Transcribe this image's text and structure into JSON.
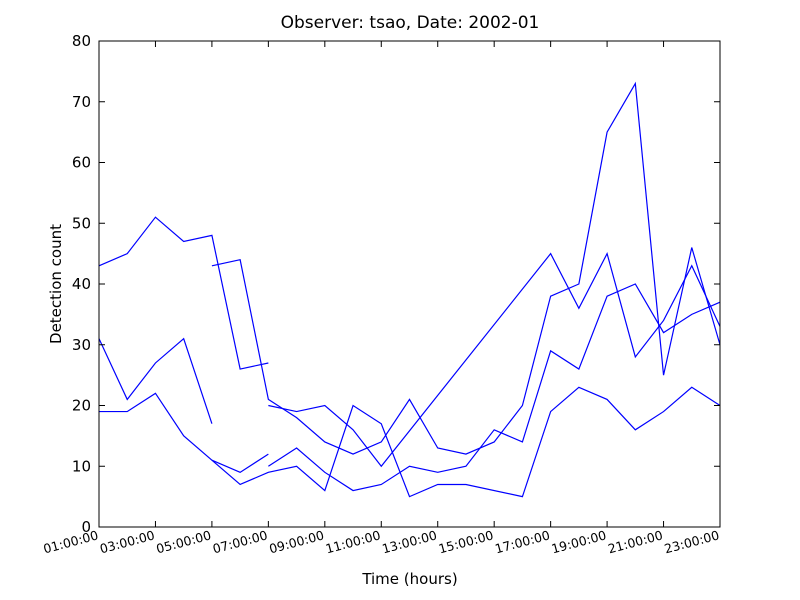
{
  "chart_data": {
    "type": "line",
    "title": "Observer: tsao, Date: 2002-01",
    "x_label": "Time (hours)",
    "y_label": "Detection count",
    "xlim": [
      1,
      23
    ],
    "ylim": [
      0,
      80
    ],
    "xticks": [
      {
        "value": 1,
        "label": "01:00:00"
      },
      {
        "value": 3,
        "label": "03:00:00"
      },
      {
        "value": 5,
        "label": "05:00:00"
      },
      {
        "value": 7,
        "label": "07:00:00"
      },
      {
        "value": 9,
        "label": "09:00:00"
      },
      {
        "value": 11,
        "label": "11:00:00"
      },
      {
        "value": 13,
        "label": "13:00:00"
      },
      {
        "value": 15,
        "label": "15:00:00"
      },
      {
        "value": 17,
        "label": "17:00:00"
      },
      {
        "value": 19,
        "label": "19:00:00"
      },
      {
        "value": 21,
        "label": "21:00:00"
      },
      {
        "value": 23,
        "label": "23:00:00"
      }
    ],
    "yticks": [
      0,
      10,
      20,
      30,
      40,
      50,
      60,
      70,
      80
    ],
    "grid": false,
    "series": [
      {
        "color": "#0000ff",
        "x": [
          1,
          2,
          3,
          4,
          5,
          6,
          7
        ],
        "values": [
          43,
          45,
          51,
          47,
          48,
          26,
          27
        ]
      },
      {
        "color": "#0000ff",
        "x": [
          1,
          2,
          3,
          4,
          5
        ],
        "values": [
          31,
          21,
          27,
          31,
          17
        ]
      },
      {
        "color": "#0000ff",
        "x": [
          1,
          2,
          3,
          4,
          5,
          6,
          7,
          8,
          9,
          10,
          11,
          12,
          13,
          14,
          16,
          17,
          18,
          19,
          20,
          21,
          22,
          23
        ],
        "values": [
          19,
          19,
          22,
          15,
          11,
          7,
          9,
          10,
          6,
          20,
          17,
          5,
          7,
          7,
          5,
          19,
          23,
          21,
          16,
          19,
          23,
          20
        ]
      },
      {
        "color": "#0000ff",
        "x": [
          5,
          6,
          7
        ],
        "values": [
          11,
          9,
          12
        ]
      },
      {
        "color": "#0000ff",
        "x": [
          5,
          6,
          7,
          8,
          9,
          10,
          11,
          12,
          13,
          14,
          15,
          16,
          17,
          18,
          19,
          20,
          21,
          22,
          23
        ],
        "values": [
          43,
          44,
          21,
          18,
          14,
          12,
          14,
          21,
          13,
          12,
          14,
          20,
          38,
          40,
          65,
          73,
          25,
          46,
          30
        ]
      },
      {
        "color": "#0000ff",
        "x": [
          7,
          8,
          9,
          10,
          11,
          17,
          18,
          19,
          20,
          21,
          22,
          23
        ],
        "values": [
          20,
          19,
          20,
          16,
          10,
          45,
          36,
          45,
          28,
          34,
          43,
          33
        ]
      },
      {
        "color": "#0000ff",
        "x": [
          7,
          8,
          9,
          10,
          11,
          12,
          13,
          14,
          15,
          16,
          17,
          18,
          19,
          20,
          21,
          22,
          23
        ],
        "values": [
          10,
          13,
          9,
          6,
          7,
          10,
          9,
          10,
          16,
          14,
          29,
          26,
          38,
          40,
          32,
          35,
          37
        ]
      }
    ]
  }
}
